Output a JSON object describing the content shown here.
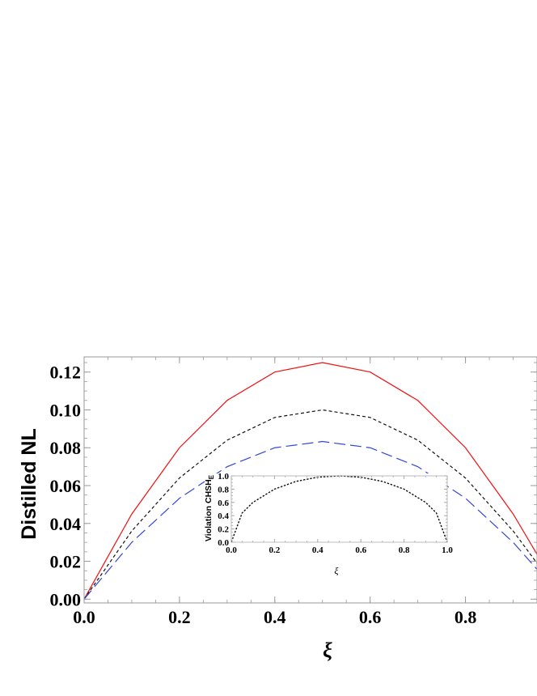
{
  "chart_data": [
    {
      "type": "line",
      "xlabel": "ξ",
      "ylabel": "Distilled NL",
      "xlim": [
        0,
        0.95
      ],
      "ylim": [
        -0.002,
        0.128
      ],
      "xticks": [
        "0.0",
        "0.2",
        "0.4",
        "0.6",
        "0.8"
      ],
      "xtick_values": [
        0,
        0.2,
        0.4,
        0.6,
        0.8
      ],
      "yticks": [
        "0.00",
        "0.02",
        "0.04",
        "0.06",
        "0.08",
        "0.10",
        "0.12"
      ],
      "ytick_values": [
        0,
        0.02,
        0.04,
        0.06,
        0.08,
        0.1,
        0.12
      ],
      "grid": false,
      "series": [
        {
          "x": [
            0,
            0.1,
            0.2,
            0.3,
            0.4,
            0.5,
            0.6,
            0.7,
            0.8,
            0.9,
            0.95
          ],
          "y": [
            0,
            0.045,
            0.08,
            0.105,
            0.12,
            0.125,
            0.12,
            0.105,
            0.08,
            0.045,
            0.02375
          ],
          "color": "#ee1111",
          "dash": "solid"
        },
        {
          "x": [
            0,
            0.1,
            0.2,
            0.3,
            0.4,
            0.5,
            0.6,
            0.7,
            0.8,
            0.9,
            0.95
          ],
          "y": [
            0,
            0.036,
            0.064,
            0.084,
            0.096,
            0.1,
            0.096,
            0.084,
            0.064,
            0.036,
            0.019
          ],
          "color": "#111111",
          "dash": "short-dash"
        },
        {
          "x": [
            0,
            0.1,
            0.2,
            0.3,
            0.4,
            0.5,
            0.6,
            0.7,
            0.8,
            0.9,
            0.95
          ],
          "y": [
            0,
            0.03,
            0.0533,
            0.07,
            0.08,
            0.0833,
            0.08,
            0.07,
            0.0533,
            0.03,
            0.0158
          ],
          "color": "#3344dd",
          "dash": "long-dash"
        }
      ]
    },
    {
      "type": "line",
      "inset": true,
      "xlabel": "ξ",
      "ylabel": "Violation CHSH",
      "ylabel_sub": "E",
      "xlim": [
        0,
        1
      ],
      "ylim": [
        0,
        1
      ],
      "xticks": [
        "0.0",
        "0.2",
        "0.4",
        "0.6",
        "0.8",
        "1.0"
      ],
      "xtick_values": [
        0,
        0.2,
        0.4,
        0.6,
        0.8,
        1
      ],
      "yticks": [
        "0.0",
        "0.2",
        "0.4",
        "0.6",
        "0.8",
        "1.0"
      ],
      "ytick_values": [
        0,
        0.2,
        0.4,
        0.6,
        0.8,
        1
      ],
      "grid": false,
      "series": [
        {
          "x": [
            0,
            0.05,
            0.1,
            0.2,
            0.3,
            0.4,
            0.5,
            0.6,
            0.7,
            0.8,
            0.9,
            0.95,
            1
          ],
          "y": [
            0,
            0.44,
            0.6,
            0.8,
            0.917,
            0.98,
            1,
            0.98,
            0.917,
            0.8,
            0.6,
            0.44,
            0
          ],
          "color": "#111111",
          "dash": "short-dash"
        }
      ]
    }
  ]
}
